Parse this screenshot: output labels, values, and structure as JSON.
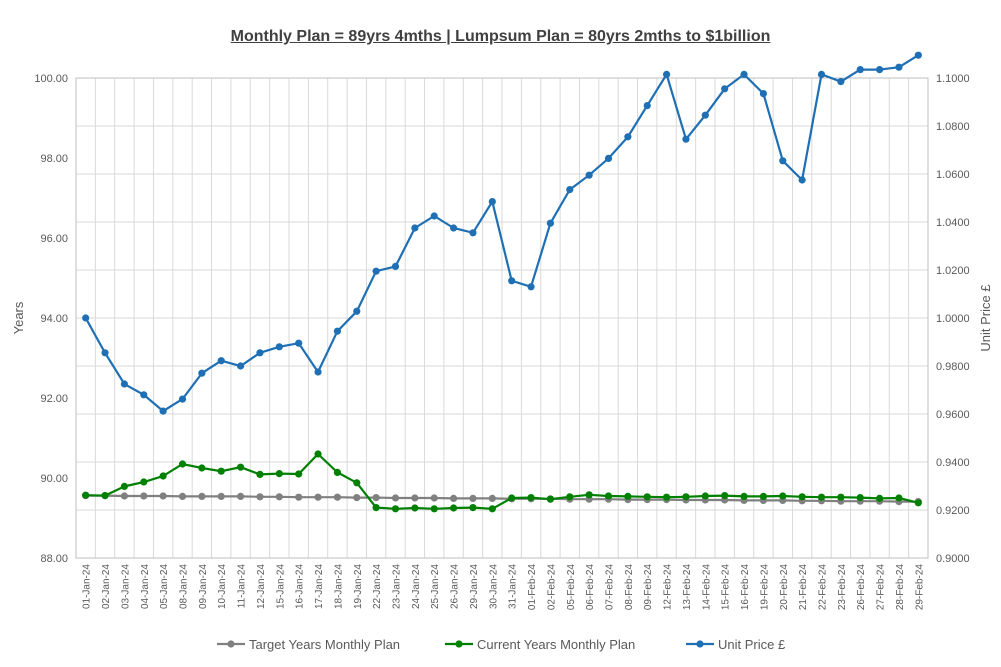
{
  "chart_data": {
    "type": "line",
    "title": "Monthly Plan = 89yrs 4mths | Lumpsum Plan = 80yrs 2mths to $1billion",
    "ylabel": "Years",
    "y2label": "Unit Price £",
    "ylim": [
      88,
      100
    ],
    "y2lim": [
      0.9,
      1.1
    ],
    "yticks": [
      "88.00",
      "90.00",
      "92.00",
      "94.00",
      "96.00",
      "98.00",
      "100.00"
    ],
    "y2ticks": [
      "0.9000",
      "0.9200",
      "0.9400",
      "0.9600",
      "0.9800",
      "1.0000",
      "1.0200",
      "1.0400",
      "1.0600",
      "1.0800",
      "1.1000"
    ],
    "grid": true,
    "legend_position": "bottom",
    "categories": [
      "01-Jan-24",
      "02-Jan-24",
      "03-Jan-24",
      "04-Jan-24",
      "05-Jan-24",
      "08-Jan-24",
      "09-Jan-24",
      "10-Jan-24",
      "11-Jan-24",
      "12-Jan-24",
      "15-Jan-24",
      "16-Jan-24",
      "17-Jan-24",
      "18-Jan-24",
      "19-Jan-24",
      "22-Jan-24",
      "23-Jan-24",
      "24-Jan-24",
      "25-Jan-24",
      "26-Jan-24",
      "29-Jan-24",
      "30-Jan-24",
      "31-Jan-24",
      "01-Feb-24",
      "02-Feb-24",
      "05-Feb-24",
      "06-Feb-24",
      "07-Feb-24",
      "08-Feb-24",
      "09-Feb-24",
      "12-Feb-24",
      "13-Feb-24",
      "14-Feb-24",
      "15-Feb-24",
      "16-Feb-24",
      "19-Feb-24",
      "20-Feb-24",
      "21-Feb-24",
      "22-Feb-24",
      "23-Feb-24",
      "26-Feb-24",
      "27-Feb-24",
      "28-Feb-24",
      "29-Feb-24"
    ],
    "series": [
      {
        "name": "Target Years Monthly Plan",
        "axis": "left",
        "color": "#808080",
        "values": [
          89.56,
          89.56,
          89.55,
          89.55,
          89.55,
          89.54,
          89.54,
          89.54,
          89.54,
          89.53,
          89.53,
          89.52,
          89.52,
          89.52,
          89.51,
          89.51,
          89.5,
          89.5,
          89.5,
          89.49,
          89.49,
          89.49,
          89.48,
          89.48,
          89.48,
          89.47,
          89.47,
          89.47,
          89.46,
          89.46,
          89.46,
          89.45,
          89.45,
          89.45,
          89.44,
          89.44,
          89.44,
          89.43,
          89.43,
          89.42,
          89.42,
          89.42,
          89.41,
          89.41
        ]
      },
      {
        "name": "Current Years Monthly Plan",
        "axis": "left",
        "color": "#008000",
        "values": [
          89.57,
          89.56,
          89.79,
          89.9,
          90.05,
          90.35,
          90.25,
          90.17,
          90.27,
          90.09,
          90.11,
          90.1,
          90.6,
          90.14,
          89.88,
          89.26,
          89.23,
          89.25,
          89.23,
          89.25,
          89.26,
          89.23,
          89.5,
          89.51,
          89.47,
          89.53,
          89.58,
          89.55,
          89.54,
          89.53,
          89.52,
          89.53,
          89.55,
          89.56,
          89.54,
          89.54,
          89.55,
          89.53,
          89.52,
          89.52,
          89.51,
          89.49,
          89.5,
          89.38
        ]
      },
      {
        "name": "Unit Price £",
        "axis": "right",
        "color": "#1f6fb4",
        "values": [
          1.0,
          0.9855,
          0.9725,
          0.968,
          0.9612,
          0.9662,
          0.977,
          0.9822,
          0.98,
          0.9855,
          0.988,
          0.9895,
          0.9775,
          0.9945,
          1.0028,
          1.0195,
          1.0215,
          1.0375,
          1.0425,
          1.0375,
          1.0355,
          1.0485,
          1.0155,
          1.013,
          1.0395,
          1.0535,
          1.0595,
          1.0665,
          1.0755,
          1.0885,
          1.1015,
          1.0745,
          1.0845,
          1.0955,
          1.1015,
          1.0935,
          1.0655,
          1.0575,
          1.1015,
          1.0985,
          1.1035,
          1.1035,
          1.1045,
          1.1095
        ]
      }
    ]
  }
}
